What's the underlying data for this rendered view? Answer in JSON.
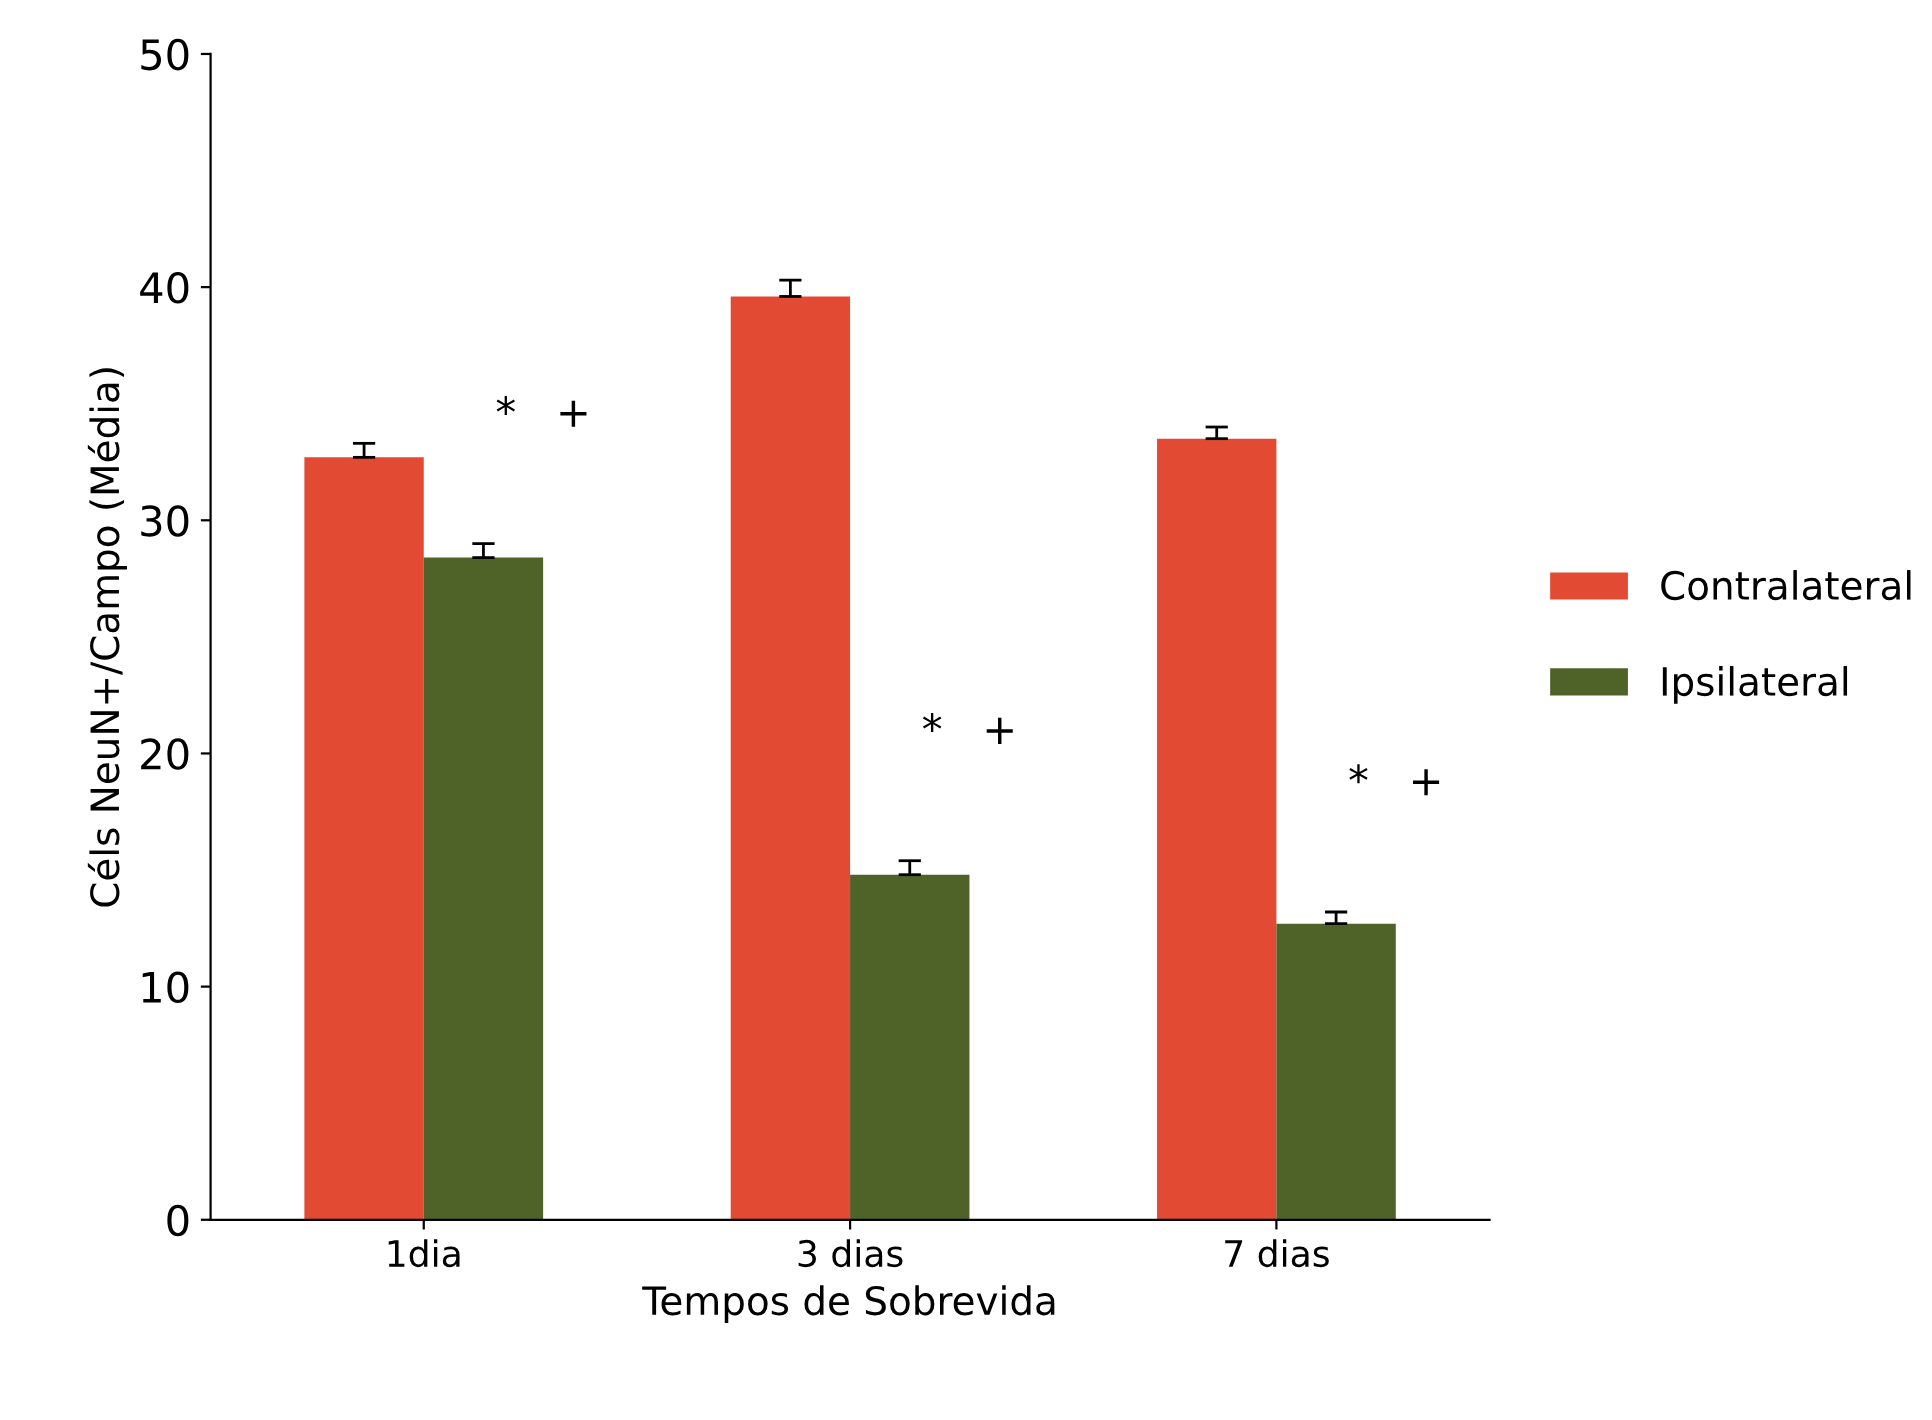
{
  "chart_data": {
    "type": "bar",
    "xlabel": "Tempos de Sobrevida",
    "ylabel": "Céls NeuN+/Campo (Média)",
    "categories": [
      "1dia",
      "3 dias",
      "7 dias"
    ],
    "series": [
      {
        "name": "Contralateral",
        "color": "#e34a33",
        "values": [
          32.7,
          39.6,
          33.5
        ],
        "errors": [
          [
            32.7,
            33.3
          ],
          [
            39.6,
            40.3
          ],
          [
            33.5,
            34.0
          ]
        ]
      },
      {
        "name": "Ipsilateral",
        "color": "#4f6228",
        "values": [
          28.4,
          14.8,
          12.7
        ],
        "errors": [
          [
            28.4,
            29.0
          ],
          [
            14.8,
            15.4
          ],
          [
            12.7,
            13.2
          ]
        ]
      }
    ],
    "ylim": [
      0,
      50
    ],
    "yticks": [
      0,
      10,
      20,
      30,
      40,
      50
    ],
    "grid": false,
    "legend": "right",
    "annotations": [
      "*   +",
      "*   +",
      "*   +"
    ]
  }
}
